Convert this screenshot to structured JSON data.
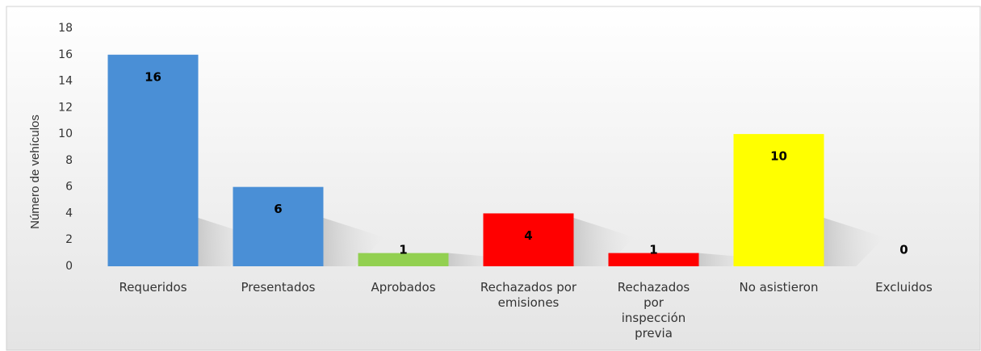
{
  "chart_data": {
    "type": "bar",
    "y_label": "Número de vehículos",
    "categories": [
      "Requeridos",
      "Presentados",
      "Aprobados",
      "Rechazados por emisiones",
      "Rechazados por inspección previa",
      "No asistieron",
      "Excluidos"
    ],
    "values": [
      16,
      6,
      1,
      4,
      1,
      10,
      0
    ],
    "colors": [
      "#4a8fd6",
      "#4a8fd6",
      "#92d050",
      "#ff0000",
      "#ff0000",
      "#ffff00",
      "#4a8fd6"
    ],
    "ylim": [
      0,
      18
    ],
    "yticks": [
      0,
      2,
      4,
      6,
      8,
      10,
      12,
      14,
      16,
      18
    ],
    "grid": false
  }
}
